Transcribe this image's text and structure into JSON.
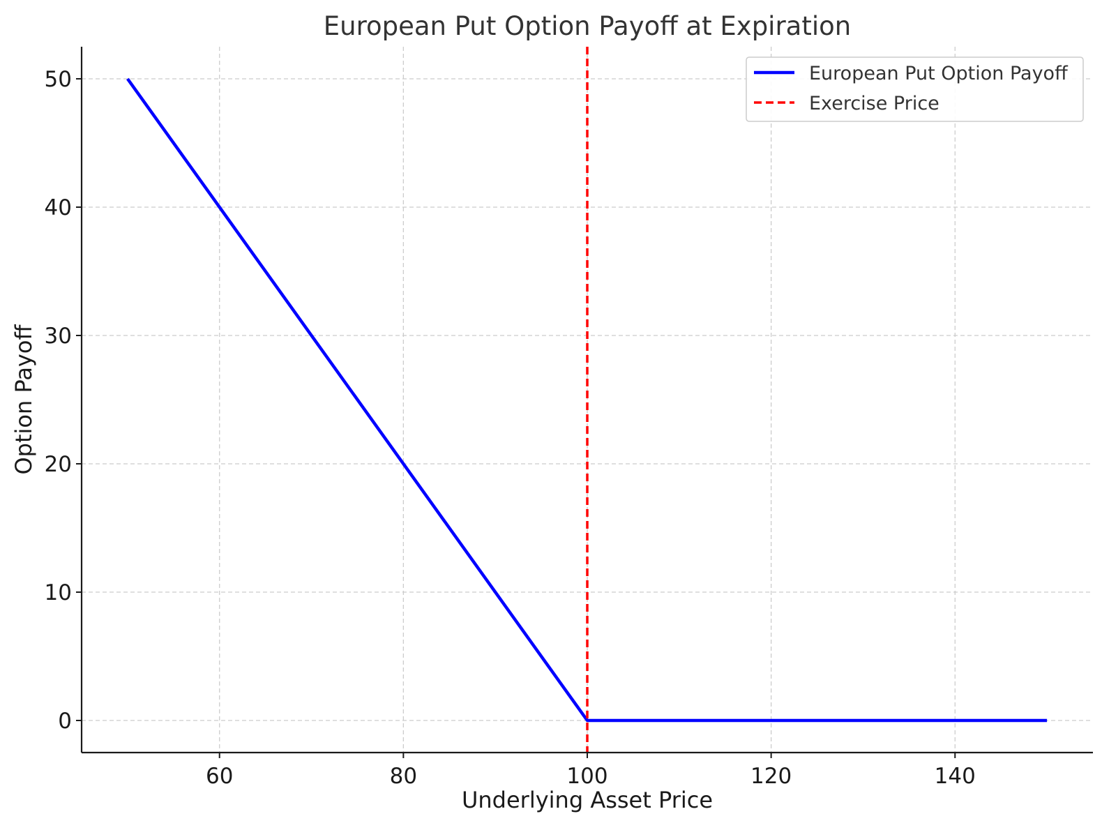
{
  "chart_data": {
    "type": "line",
    "title": "European Put Option Payoff at Expiration",
    "xlabel": "Underlying Asset Price",
    "ylabel": "Option Payoff",
    "xlim": [
      45,
      155
    ],
    "ylim": [
      -2.5,
      52.5
    ],
    "xticks": [
      60,
      80,
      100,
      120,
      140
    ],
    "yticks": [
      0,
      10,
      20,
      30,
      40,
      50
    ],
    "grid": true,
    "legend_position": "top-right",
    "series": [
      {
        "name": "European Put Option Payoff",
        "style": "solid",
        "color": "#0000ff",
        "x": [
          50,
          99.5,
          100,
          150
        ],
        "y": [
          50,
          0.5,
          0,
          0
        ]
      },
      {
        "name": "Exercise Price",
        "style": "dashed",
        "color": "#ff0000",
        "vertical_line_x": 100
      }
    ]
  }
}
